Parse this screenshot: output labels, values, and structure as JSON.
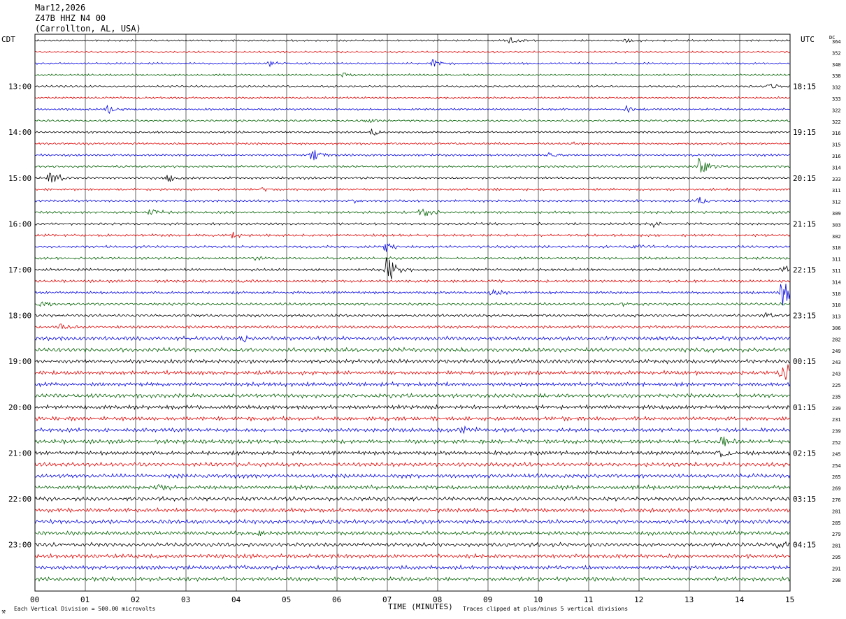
{
  "header": {
    "date": "Mar12,2026",
    "station": "Z47B HHZ N4 00",
    "location": "(Carrollton, AL, USA)"
  },
  "labels": {
    "left_tz": "CDT",
    "right_tz": "UTC",
    "dc_label": "DC"
  },
  "footer": {
    "scale": "Each Vertical Division =  500.00 microvolts",
    "clip_note": "Traces clipped at plus/minus 5 vertical divisions",
    "corner_mark": "⚒"
  },
  "colors": {
    "traces": [
      "#000000",
      "#e00000",
      "#0000e0",
      "#006000"
    ],
    "grid": "#000000"
  },
  "chart_data": {
    "type": "line",
    "xlabel": "TIME (MINUTES)",
    "x_ticks": [
      "00",
      "01",
      "02",
      "03",
      "04",
      "05",
      "06",
      "07",
      "08",
      "09",
      "10",
      "11",
      "12",
      "13",
      "14",
      "15"
    ],
    "xlim": [
      0,
      15
    ],
    "left_time_labels": [
      "13:00",
      "14:00",
      "15:00",
      "16:00",
      "17:00",
      "18:00",
      "19:00",
      "20:00",
      "21:00",
      "22:00",
      "23:00"
    ],
    "right_time_labels": [
      "18:15",
      "19:15",
      "20:15",
      "21:15",
      "22:15",
      "23:15",
      "00:15",
      "01:15",
      "02:15",
      "03:15",
      "04:15"
    ],
    "dc_offsets": [
      364,
      352,
      340,
      338,
      332,
      333,
      322,
      322,
      316,
      315,
      316,
      314,
      333,
      311,
      312,
      309,
      303,
      302,
      310,
      311,
      311,
      314,
      310,
      310,
      313,
      306,
      282,
      249,
      243,
      243,
      225,
      235,
      239,
      231,
      239,
      252,
      245,
      254,
      265,
      269,
      276,
      281,
      285,
      279,
      281,
      295,
      291,
      298
    ],
    "events": [
      {
        "row": 0,
        "minute": 9.45,
        "amp": 0.5
      },
      {
        "row": 0,
        "minute": 11.75,
        "amp": 0.3
      },
      {
        "row": 1,
        "minute": 14.9,
        "amp": 0.3
      },
      {
        "row": 2,
        "minute": 4.65,
        "amp": 0.4
      },
      {
        "row": 2,
        "minute": 7.9,
        "amp": 0.5
      },
      {
        "row": 3,
        "minute": 6.15,
        "amp": 0.4
      },
      {
        "row": 4,
        "minute": 14.6,
        "amp": 0.6
      },
      {
        "row": 6,
        "minute": 1.45,
        "amp": 0.5
      },
      {
        "row": 6,
        "minute": 11.75,
        "amp": 0.5
      },
      {
        "row": 7,
        "minute": 6.6,
        "amp": 0.4
      },
      {
        "row": 8,
        "minute": 6.7,
        "amp": 0.4
      },
      {
        "row": 9,
        "minute": 10.7,
        "amp": 0.3
      },
      {
        "row": 10,
        "minute": 5.5,
        "amp": 0.8
      },
      {
        "row": 10,
        "minute": 10.2,
        "amp": 0.4
      },
      {
        "row": 11,
        "minute": 13.2,
        "amp": 1.2
      },
      {
        "row": 12,
        "minute": 0.3,
        "amp": 1.0
      },
      {
        "row": 12,
        "minute": 2.65,
        "amp": 0.8
      },
      {
        "row": 13,
        "minute": 4.5,
        "amp": 0.3
      },
      {
        "row": 14,
        "minute": 6.3,
        "amp": 0.3
      },
      {
        "row": 14,
        "minute": 13.2,
        "amp": 0.5
      },
      {
        "row": 15,
        "minute": 2.3,
        "amp": 0.5
      },
      {
        "row": 15,
        "minute": 7.65,
        "amp": 0.9
      },
      {
        "row": 16,
        "minute": 12.25,
        "amp": 0.4
      },
      {
        "row": 17,
        "minute": 3.9,
        "amp": 0.4
      },
      {
        "row": 18,
        "minute": 6.95,
        "amp": 0.7
      },
      {
        "row": 18,
        "minute": 11.9,
        "amp": 0.4
      },
      {
        "row": 19,
        "minute": 4.4,
        "amp": 0.3
      },
      {
        "row": 20,
        "minute": 7.0,
        "amp": 2.2
      },
      {
        "row": 20,
        "minute": 14.85,
        "amp": 0.6
      },
      {
        "row": 21,
        "minute": 4.15,
        "amp": 0.3
      },
      {
        "row": 22,
        "minute": 9.1,
        "amp": 0.4
      },
      {
        "row": 22,
        "minute": 14.85,
        "amp": 1.8
      },
      {
        "row": 23,
        "minute": 0.1,
        "amp": 0.5
      },
      {
        "row": 23,
        "minute": 11.6,
        "amp": 0.3
      },
      {
        "row": 24,
        "minute": 14.5,
        "amp": 0.4
      },
      {
        "row": 25,
        "minute": 0.5,
        "amp": 0.3
      },
      {
        "row": 26,
        "minute": 4.1,
        "amp": 0.4
      },
      {
        "row": 27,
        "minute": 13.3,
        "amp": 0.4
      },
      {
        "row": 28,
        "minute": 12.4,
        "amp": 0.3
      },
      {
        "row": 29,
        "minute": 14.85,
        "amp": 1.5
      },
      {
        "row": 31,
        "minute": 7.05,
        "amp": 0.3
      },
      {
        "row": 34,
        "minute": 8.45,
        "amp": 0.5
      },
      {
        "row": 35,
        "minute": 13.65,
        "amp": 0.7
      },
      {
        "row": 36,
        "minute": 13.6,
        "amp": 0.9
      },
      {
        "row": 39,
        "minute": 2.45,
        "amp": 0.3
      },
      {
        "row": 43,
        "minute": 4.45,
        "amp": 0.3
      },
      {
        "row": 44,
        "minute": 14.75,
        "amp": 0.5
      },
      {
        "row": 46,
        "minute": 4.1,
        "amp": 0.3
      }
    ]
  }
}
